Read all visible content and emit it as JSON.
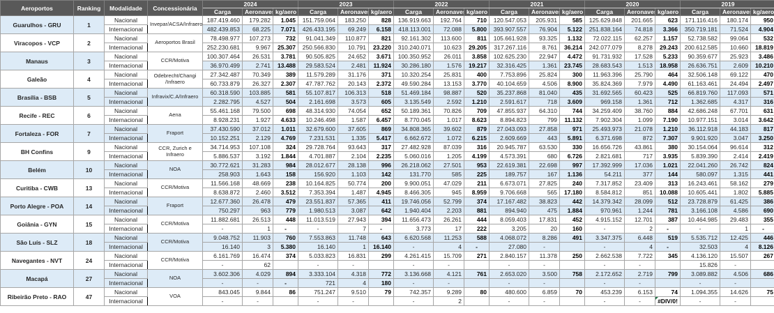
{
  "table": {
    "left_headers": [
      "Aeroportos",
      "Ranking",
      "Modalidade",
      "Concessionária"
    ],
    "years": [
      "2024",
      "2023",
      "2022",
      "2021",
      "2020",
      "2019"
    ],
    "metric_headers": [
      "Carga",
      "Aeronaves",
      "kg/aero"
    ],
    "modalities": [
      "Nacional",
      "Internacional"
    ],
    "error_value": "#DIV/0!",
    "airports": [
      {
        "name": "Guarulhos - GRU",
        "ranking": "1",
        "concessionaria": "Invepar/ACSA/Infraero",
        "left_band": true,
        "mid_band": false,
        "row_bands": [
          false,
          true
        ],
        "nacional": [
          "187.419.460",
          "179.282",
          "1.045",
          "151.759.064",
          "183.250",
          "828",
          "136.919.663",
          "192.764",
          "710",
          "120.547.053",
          "205.931",
          "585",
          "125.629.848",
          "201.665",
          "623",
          "171.116.416",
          "180.174",
          "950"
        ],
        "internacional": [
          "482.439.853",
          "68.225",
          "7.071",
          "426.433.195",
          "69.249",
          "6.158",
          "418.113.001",
          "72.088",
          "5.800",
          "393.907.557",
          "76.904",
          "5.122",
          "251.838.164",
          "74.818",
          "3.366",
          "350.719.181",
          "71.524",
          "4.904"
        ]
      },
      {
        "name": "Viracopos - VCP",
        "ranking": "2",
        "concessionaria": "Aeroportos Brasil",
        "left_band": false,
        "mid_band": false,
        "row_bands": [
          false,
          false
        ],
        "nacional": [
          "78.498.977",
          "107.273",
          "732",
          "91.041.349",
          "110.877",
          "821",
          "92.161.302",
          "113.600",
          "811",
          "105.661.928",
          "93.325",
          "1.132",
          "72.022.115",
          "62.257",
          "1.157",
          "52.738.582",
          "99.064",
          "532"
        ],
        "internacional": [
          "252.230.681",
          "9.967",
          "25.307",
          "250.566.830",
          "10.791",
          "23.220",
          "310.240.071",
          "10.623",
          "29.205",
          "317.267.116",
          "8.761",
          "36.214",
          "242.077.079",
          "8.278",
          "29.243",
          "200.612.585",
          "10.660",
          "18.819"
        ]
      },
      {
        "name": "Manaus",
        "ranking": "3",
        "concessionaria": "CCR/Motiva",
        "left_band": true,
        "mid_band": false,
        "row_bands": [
          false,
          true
        ],
        "nacional": [
          "100.307.464",
          "26.531",
          "3.781",
          "90.505.825",
          "24.652",
          "3.671",
          "100.350.952",
          "26.011",
          "3.858",
          "102.625.230",
          "22.947",
          "4.472",
          "91.731.932",
          "17.528",
          "5.233",
          "90.359.677",
          "25.923",
          "3.486"
        ],
        "internacional": [
          "36.970.499",
          "2.741",
          "13.488",
          "29.583.524",
          "2.481",
          "11.924",
          "30.286.180",
          "1.576",
          "19.217",
          "32.316.425",
          "1.361",
          "23.745",
          "28.683.543",
          "1.513",
          "18.958",
          "26.636.751",
          "2.609",
          "10.210"
        ]
      },
      {
        "name": "Galeão",
        "ranking": "4",
        "concessionaria": "Odebrecht/Changi /Infraero",
        "left_band": false,
        "mid_band": false,
        "row_bands": [
          false,
          false
        ],
        "nacional": [
          "27.342.487",
          "70.349",
          "389",
          "11.579.289",
          "31.176",
          "371",
          "10.320.254",
          "25.831",
          "400",
          "7.753.896",
          "25.824",
          "300",
          "11.963.396",
          "25.790",
          "464",
          "32.506.148",
          "69.122",
          "470"
        ],
        "internacional": [
          "60.733.879",
          "26.327",
          "2.307",
          "47.787.762",
          "20.143",
          "2.372",
          "49.590.284",
          "13.153",
          "3.770",
          "40.104.659",
          "4.506",
          "8.900",
          "35.824.369",
          "7.979",
          "4.490",
          "61.163.461",
          "24.494",
          "2.497"
        ]
      },
      {
        "name": "Brasília - BSB",
        "ranking": "5",
        "concessionaria": "Infravix/C.A/Infraero",
        "left_band": true,
        "mid_band": true,
        "row_bands": [
          true,
          true
        ],
        "nacional": [
          "60.318.590",
          "103.885",
          "581",
          "55.107.817",
          "106.313",
          "518",
          "51.469.184",
          "98.887",
          "520",
          "35.237.868",
          "81.040",
          "435",
          "31.692.565",
          "60.423",
          "525",
          "66.819.760",
          "117.093",
          "571"
        ],
        "internacional": [
          "2.282.795",
          "4.527",
          "504",
          "2.161.698",
          "3.573",
          "605",
          "3.135.549",
          "2.592",
          "1.210",
          "2.591.617",
          "718",
          "3.609",
          "969.158",
          "1.361",
          "712",
          "1.362.685",
          "4.317",
          "316"
        ]
      },
      {
        "name": "Recife - REC",
        "ranking": "6",
        "concessionaria": "Aena",
        "left_band": false,
        "mid_band": false,
        "row_bands": [
          false,
          false
        ],
        "nacional": [
          "55.461.168",
          "79.500",
          "698",
          "48.314.930",
          "74.054",
          "652",
          "50.189.361",
          "70.826",
          "709",
          "47.855.937",
          "64.310",
          "744",
          "34.259.409",
          "38.760",
          "884",
          "42.686.248",
          "67.701",
          "631"
        ],
        "internacional": [
          "8.928.231",
          "1.927",
          "4.633",
          "10.246.498",
          "1.587",
          "6.457",
          "8.770.045",
          "1.017",
          "8.623",
          "8.894.823",
          "799",
          "11.132",
          "7.902.304",
          "1.099",
          "7.190",
          "10.977.151",
          "3.014",
          "3.642"
        ]
      },
      {
        "name": "Fortaleza - FOR",
        "ranking": "7",
        "concessionaria": "Fraport",
        "left_band": true,
        "mid_band": true,
        "row_bands": [
          true,
          true
        ],
        "nacional": [
          "37.430.590",
          "37.012",
          "1.011",
          "32.679.600",
          "37.605",
          "869",
          "34.808.365",
          "39.602",
          "879",
          "27.043.093",
          "27.858",
          "971",
          "25.493.973",
          "21.078",
          "1.210",
          "36.112.918",
          "44.183",
          "817"
        ],
        "internacional": [
          "10.152.251",
          "2.129",
          "4.769",
          "7.231.531",
          "1.335",
          "5.417",
          "6.662.672",
          "1.072",
          "6.215",
          "2.609.669",
          "443",
          "5.891",
          "6.371.698",
          "872",
          "7.307",
          "9.901.920",
          "3.047",
          "3.250"
        ]
      },
      {
        "name": "BH Confins",
        "ranking": "9",
        "concessionaria": "CCR, Zurich e Infraero",
        "left_band": false,
        "mid_band": false,
        "row_bands": [
          false,
          false
        ],
        "nacional": [
          "34.714.953",
          "107.108",
          "324",
          "29.728.764",
          "93.643",
          "317",
          "27.482.928",
          "87.039",
          "316",
          "20.945.787",
          "63.530",
          "330",
          "16.656.726",
          "43.861",
          "380",
          "30.154.064",
          "96.614",
          "312"
        ],
        "internacional": [
          "5.886.537",
          "3.192",
          "1.844",
          "4.701.887",
          "2.104",
          "2.235",
          "5.060.016",
          "1.205",
          "4.199",
          "4.573.391",
          "680",
          "6.726",
          "2.821.681",
          "717",
          "3.935",
          "5.839.390",
          "2.414",
          "2.419"
        ]
      },
      {
        "name": "Belém",
        "ranking": "10",
        "concessionaria": "NOA",
        "left_band": true,
        "mid_band": true,
        "row_bands": [
          true,
          true
        ],
        "nacional": [
          "30.772.621",
          "31.283",
          "984",
          "28.012.677",
          "28.138",
          "996",
          "26.218.062",
          "27.501",
          "953",
          "22.619.381",
          "22.698",
          "997",
          "17.392.999",
          "17.036",
          "1.021",
          "22.041.260",
          "26.742",
          "824"
        ],
        "internacional": [
          "258.903",
          "1.643",
          "158",
          "156.920",
          "1.103",
          "142",
          "131.770",
          "585",
          "225",
          "189.757",
          "167",
          "1.136",
          "54.211",
          "377",
          "144",
          "580.097",
          "1.315",
          "441"
        ]
      },
      {
        "name": "Curitiba - CWB",
        "ranking": "13",
        "concessionaria": "CCR/Motiva",
        "left_band": false,
        "mid_band": false,
        "row_bands": [
          false,
          false
        ],
        "nacional": [
          "11.566.168",
          "48.669",
          "238",
          "10.164.825",
          "50.774",
          "200",
          "9.900.051",
          "47.029",
          "211",
          "6.673.071",
          "27.825",
          "240",
          "7.317.852",
          "23.409",
          "313",
          "16.243.461",
          "58.162",
          "279"
        ],
        "internacional": [
          "8.638.872",
          "2.460",
          "3.512",
          "7.353.394",
          "1.487",
          "4.945",
          "8.466.305",
          "945",
          "8.959",
          "9.706.668",
          "565",
          "17.180",
          "8.584.812",
          "851",
          "10.088",
          "10.605.441",
          "1.802",
          "5.885"
        ]
      },
      {
        "name": "Porto Alegre - POA",
        "ranking": "14",
        "concessionaria": "Fraport",
        "left_band": true,
        "mid_band": true,
        "row_bands": [
          true,
          true
        ],
        "nacional": [
          "12.677.360",
          "26.478",
          "479",
          "23.551.837",
          "57.365",
          "411",
          "19.746.056",
          "52.799",
          "374",
          "17.167.482",
          "38.823",
          "442",
          "14.379.342",
          "28.099",
          "512",
          "23.728.879",
          "61.425",
          "386"
        ],
        "internacional": [
          "750.297",
          "963",
          "779",
          "1.980.513",
          "3.087",
          "642",
          "1.940.404",
          "2.203",
          "881",
          "894.940",
          "475",
          "1.884",
          "970.961",
          "1.244",
          "781",
          "3.166.108",
          "4.586",
          "690"
        ]
      },
      {
        "name": "Goiânia - GYN",
        "ranking": "15",
        "concessionaria": "CCR/Motiva",
        "left_band": false,
        "mid_band": false,
        "row_bands": [
          false,
          false
        ],
        "nacional": [
          "11.882.681",
          "26.513",
          "448",
          "11.013.519",
          "27.943",
          "394",
          "11.656.473",
          "26.261",
          "444",
          "8.059.403",
          "17.831",
          "452",
          "4.915.152",
          "12.701",
          "387",
          "10.464.985",
          "29.483",
          "355"
        ],
        "internacional": [
          "-",
          "1",
          "-",
          "-",
          "7",
          "-",
          "3.773",
          "17",
          "222",
          "3.205",
          "20",
          "160",
          "-",
          "2",
          "-",
          "-",
          "1",
          "-"
        ]
      },
      {
        "name": "São Luís - SLZ",
        "ranking": "18",
        "concessionaria": "CCR/Motiva",
        "left_band": true,
        "mid_band": true,
        "row_bands": [
          true,
          true
        ],
        "nacional": [
          "9.048.752",
          "11.903",
          "760",
          "7.553.863",
          "11.748",
          "643",
          "6.620.568",
          "11.253",
          "588",
          "4.068.072",
          "8.286",
          "491",
          "3.347.375",
          "6.448",
          "519",
          "5.535.712",
          "12.425",
          "446"
        ],
        "internacional": [
          "16.140",
          "3",
          "5.380",
          "16.140",
          "1",
          "16.140",
          "-",
          "4",
          "-",
          "27.080",
          "-",
          "",
          "-",
          "4",
          "-",
          "32.503",
          "4",
          "8.126"
        ]
      },
      {
        "name": "Navegantes - NVT",
        "ranking": "24",
        "concessionaria": "CCR/Motiva",
        "left_band": false,
        "mid_band": false,
        "row_bands": [
          false,
          false
        ],
        "nacional": [
          "6.161.769",
          "16.474",
          "374",
          "5.033.823",
          "16.831",
          "299",
          "4.261.415",
          "15.709",
          "271",
          "2.840.157",
          "11.378",
          "250",
          "2.662.538",
          "7.722",
          "345",
          "4.136.120",
          "15.507",
          "267"
        ],
        "internacional": [
          "-",
          "62",
          "",
          "-",
          "-",
          "",
          "-",
          "-",
          "",
          "-",
          "-",
          "",
          "-",
          "-",
          "",
          "15.826",
          "-",
          ""
        ]
      },
      {
        "name": "Macapá",
        "ranking": "27",
        "concessionaria": "NOA",
        "left_band": true,
        "mid_band": true,
        "row_bands": [
          true,
          true
        ],
        "nacional": [
          "3.602.306",
          "4.029",
          "894",
          "3.333.104",
          "4.318",
          "772",
          "3.136.668",
          "4.121",
          "761",
          "2.653.020",
          "3.500",
          "758",
          "2.172.652",
          "2.719",
          "799",
          "3.089.882",
          "4.506",
          "686"
        ],
        "internacional": [
          "-",
          "-",
          "-",
          "721",
          "4",
          "180",
          "-",
          "-",
          "",
          "-",
          "-",
          "",
          "-",
          "-",
          "",
          "-",
          "-",
          ""
        ]
      },
      {
        "name": "Ribeirão Preto - RAO",
        "ranking": "47",
        "concessionaria": "VOA",
        "left_band": false,
        "mid_band": false,
        "row_bands": [
          false,
          false
        ],
        "nacional": [
          "843.045",
          "9.844",
          "86",
          "751.247",
          "9.510",
          "79",
          "742.357",
          "9.289",
          "80",
          "480.600",
          "6.859",
          "70",
          "453.239",
          "6.153",
          "74",
          "1.094.355",
          "14.626",
          "75"
        ],
        "internacional": [
          "-",
          "-",
          "",
          "-",
          "-",
          "",
          "-",
          "2",
          "",
          "-",
          "-",
          "",
          "-",
          "-",
          "#DIV/0!",
          "-",
          "-",
          ""
        ]
      }
    ]
  },
  "colors": {
    "header_bg": "#595959",
    "header_text": "#ffffff",
    "band_blue": "#DDEBF7",
    "border_dark": "#000000",
    "border_light": "#a6a6a6",
    "error_indicator_green": "#217346"
  }
}
